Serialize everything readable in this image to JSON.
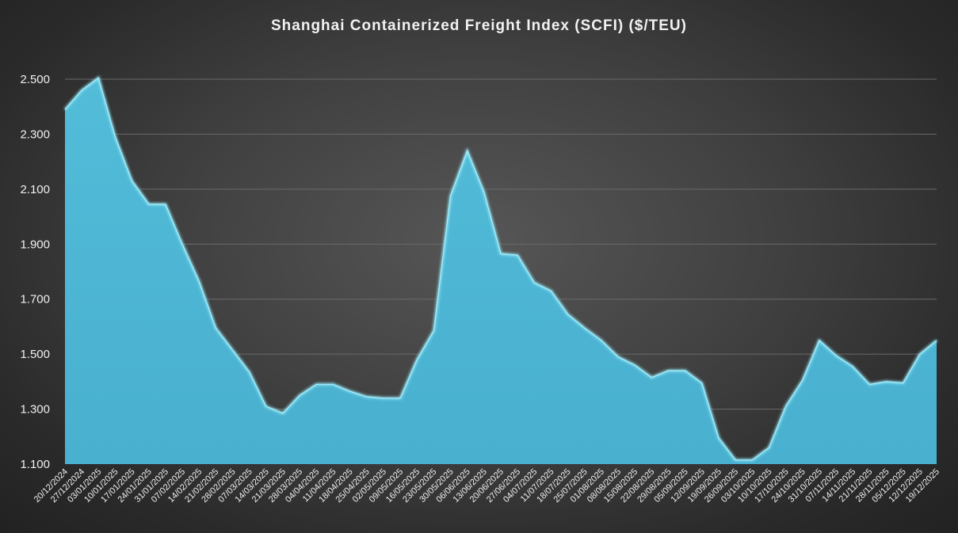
{
  "chart_data": {
    "type": "area",
    "title": "Shanghai Containerized Freight Index (SCFI) ($/TEU)",
    "xlabel": "",
    "ylabel": "",
    "ylim": [
      1100,
      2500
    ],
    "yticks": [
      1100,
      1300,
      1500,
      1700,
      1900,
      2100,
      2300,
      2500
    ],
    "ytick_labels": [
      "1.100",
      "1.300",
      "1.500",
      "1.700",
      "1.900",
      "2.100",
      "2.300",
      "2.500"
    ],
    "grid": true,
    "legend": "none",
    "colors": {
      "fill": "#4db6d4",
      "edge": "#8ee4f6"
    },
    "series": [
      {
        "points": [
          [
            "20/12/2024",
            2390
          ],
          [
            "27/12/2024",
            2460
          ],
          [
            "03/01/2025",
            2505
          ],
          [
            "",
            2290
          ],
          [
            "10/01/2025",
            2130
          ],
          [
            "",
            2045
          ],
          [
            "17/01/2025",
            2045
          ],
          [
            "",
            1900
          ],
          [
            "24/01/2025",
            1765
          ],
          [
            "",
            1595
          ],
          [
            "31/01/2025",
            1515
          ],
          [
            "",
            1435
          ],
          [
            "07/02/2025",
            1310
          ],
          [
            "",
            1285
          ],
          [
            "14/02/2025",
            1350
          ],
          [
            "",
            1390
          ],
          [
            "21/02/2025",
            1390
          ],
          [
            "",
            1365
          ],
          [
            "28/02/2025",
            1345
          ],
          [
            "",
            1340
          ],
          [
            "07/03/2025",
            1340
          ],
          [
            "",
            1480
          ],
          [
            "14/03/2025",
            1585
          ],
          [
            "",
            2075
          ],
          [
            "21/03/2025",
            2240
          ],
          [
            "28/03/2025",
            2090
          ],
          [
            "04/04/2025",
            1865
          ],
          [
            "11/04/2025",
            1860
          ],
          [
            "18/04/2025",
            1760
          ],
          [
            "25/04/2025",
            1730
          ],
          [
            "02/05/2025",
            1645
          ],
          [
            "09/05/2025",
            1595
          ],
          [
            "16/05/2025",
            1550
          ],
          [
            "23/05/2025",
            1490
          ],
          [
            "30/05/2025",
            1460
          ],
          [
            "06/06/2025",
            1415
          ],
          [
            "13/06/2025",
            1440
          ],
          [
            "20/06/2025",
            1440
          ],
          [
            "27/06/2025",
            1395
          ],
          [
            "04/07/2025",
            1195
          ],
          [
            "11/07/2025",
            1115
          ],
          [
            "18/07/2025",
            1115
          ],
          [
            "25/07/2025",
            1160
          ],
          [
            "01/08/2025",
            1310
          ],
          [
            "08/08/2025",
            1405
          ],
          [
            "15/08/2025",
            1550
          ],
          [
            "22/08/2025",
            1495
          ],
          [
            "29/08/2025",
            1455
          ],
          [
            "05/09/2025",
            1390
          ],
          [
            "12/09/2025",
            1400
          ],
          [
            "19/09/2025",
            1395
          ],
          [
            "26/09/2025",
            1500
          ],
          [
            "03/10/2025",
            1550
          ]
        ]
      }
    ],
    "x_tick_labels": [
      "20/12/2024",
      "27/12/2024",
      "03/01/2025",
      "10/01/2025",
      "17/01/2025",
      "24/01/2025",
      "31/01/2025",
      "07/02/2025",
      "14/02/2025",
      "21/02/2025",
      "28/02/2025",
      "07/03/2025",
      "14/03/2025",
      "21/03/2025",
      "28/03/2025",
      "04/04/2025",
      "11/04/2025",
      "18/04/2025",
      "25/04/2025",
      "02/05/2025",
      "09/05/2025",
      "16/05/2025",
      "23/05/2025",
      "30/05/2025",
      "06/06/2025",
      "13/06/2025",
      "20/06/2025",
      "27/06/2025",
      "04/07/2025",
      "11/07/2025",
      "18/07/2025",
      "25/07/2025",
      "01/08/2025",
      "08/08/2025",
      "15/08/2025",
      "22/08/2025",
      "29/08/2025",
      "05/09/2025",
      "12/09/2025",
      "19/09/2025",
      "26/09/2025",
      "03/10/2025",
      "10/10/2025",
      "17/10/2025",
      "24/10/2025",
      "31/10/2025",
      "07/11/2025",
      "14/11/2025",
      "21/11/2025",
      "28/11/2025",
      "05/12/2025",
      "12/12/2025",
      "19/12/2025"
    ]
  }
}
